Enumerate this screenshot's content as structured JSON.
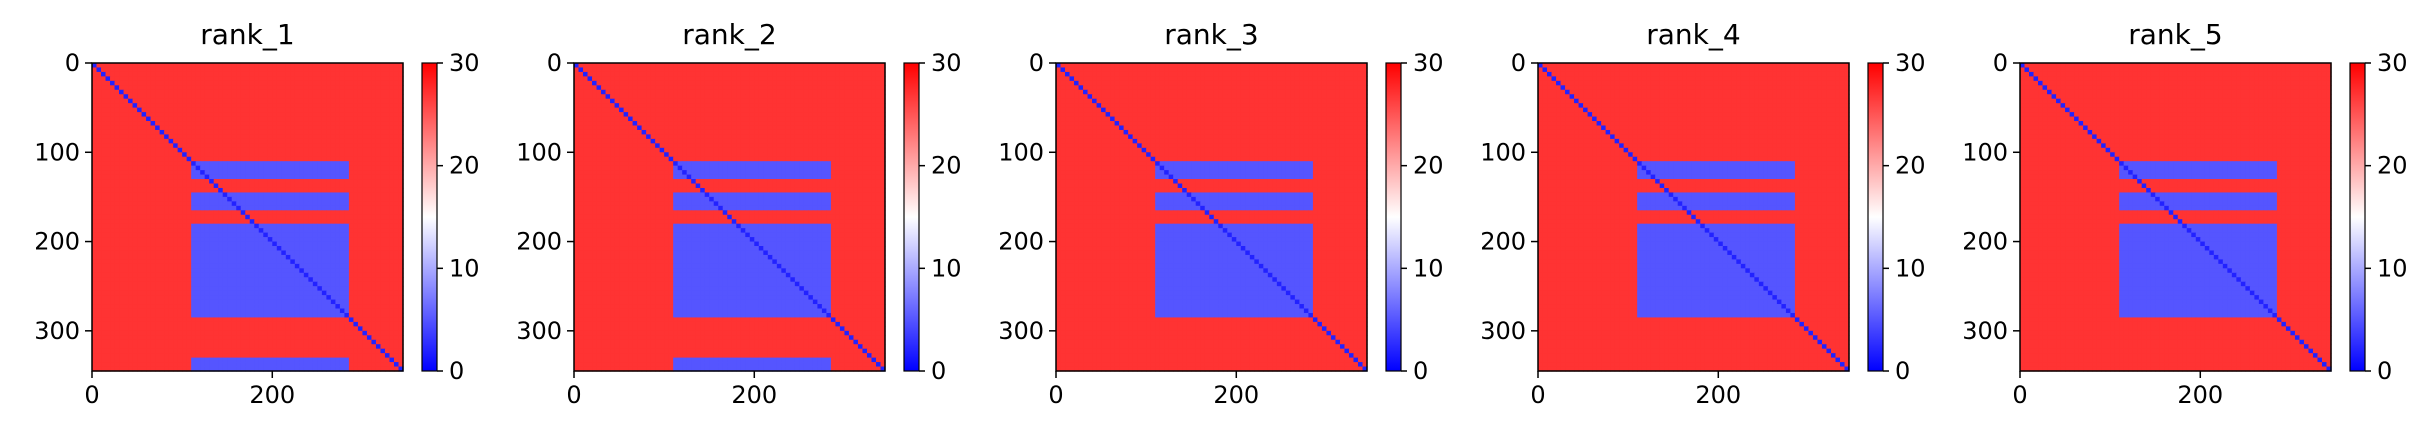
{
  "figure": {
    "background": "#ffffff",
    "colormap": {
      "name": "bwr",
      "low": "#0000ff",
      "mid": "#ffffff",
      "high": "#ff0000"
    }
  },
  "chart_data": [
    {
      "type": "heatmap",
      "title": "rank_1",
      "xlim": [
        0,
        345
      ],
      "ylim": [
        345,
        0
      ],
      "xticks": [
        0,
        200
      ],
      "yticks": [
        0,
        100,
        200,
        300
      ],
      "colorbar": {
        "range": [
          0,
          30
        ],
        "ticks": [
          0,
          10,
          20,
          30
        ]
      },
      "description_regions": {
        "baseline_value": 27,
        "diagonal_value": 2,
        "block_value": 5,
        "blocks": {
          "x_spans": [
            [
              110,
              285
            ]
          ],
          "y_spans": [
            [
              110,
              130
            ],
            [
              145,
              165
            ],
            [
              180,
              285
            ]
          ]
        },
        "edge_fragment": [
          [
            330,
            345
          ],
          [
            110,
            285
          ]
        ]
      }
    },
    {
      "type": "heatmap",
      "title": "rank_2",
      "xlim": [
        0,
        345
      ],
      "ylim": [
        345,
        0
      ],
      "xticks": [
        0,
        200
      ],
      "yticks": [
        0,
        100,
        200,
        300
      ],
      "colorbar": {
        "range": [
          0,
          30
        ],
        "ticks": [
          0,
          10,
          20,
          30
        ]
      },
      "description_regions": {
        "baseline_value": 27,
        "diagonal_value": 2,
        "block_value": 5,
        "blocks": {
          "x_spans": [
            [
              110,
              285
            ]
          ],
          "y_spans": [
            [
              110,
              130
            ],
            [
              145,
              165
            ],
            [
              180,
              285
            ]
          ]
        },
        "edge_fragment": [
          [
            330,
            345
          ],
          [
            110,
            285
          ]
        ]
      }
    },
    {
      "type": "heatmap",
      "title": "rank_3",
      "xlim": [
        0,
        345
      ],
      "ylim": [
        345,
        0
      ],
      "xticks": [
        0,
        200
      ],
      "yticks": [
        0,
        100,
        200,
        300
      ],
      "colorbar": {
        "range": [
          0,
          30
        ],
        "ticks": [
          0,
          10,
          20,
          30
        ]
      },
      "description_regions": {
        "baseline_value": 27,
        "diagonal_value": 2,
        "block_value": 5,
        "blocks": {
          "x_spans": [
            [
              110,
              285
            ]
          ],
          "y_spans": [
            [
              110,
              130
            ],
            [
              145,
              165
            ],
            [
              180,
              285
            ]
          ]
        },
        "edge_fragment": []
      }
    },
    {
      "type": "heatmap",
      "title": "rank_4",
      "xlim": [
        0,
        345
      ],
      "ylim": [
        345,
        0
      ],
      "xticks": [
        0,
        200
      ],
      "yticks": [
        0,
        100,
        200,
        300
      ],
      "colorbar": {
        "range": [
          0,
          30
        ],
        "ticks": [
          0,
          10,
          20,
          30
        ]
      },
      "description_regions": {
        "baseline_value": 27,
        "diagonal_value": 2,
        "block_value": 5,
        "blocks": {
          "x_spans": [
            [
              110,
              285
            ]
          ],
          "y_spans": [
            [
              110,
              130
            ],
            [
              145,
              165
            ],
            [
              180,
              285
            ]
          ]
        },
        "edge_fragment": []
      }
    },
    {
      "type": "heatmap",
      "title": "rank_5",
      "xlim": [
        0,
        345
      ],
      "ylim": [
        345,
        0
      ],
      "xticks": [
        0,
        200
      ],
      "yticks": [
        0,
        100,
        200,
        300
      ],
      "colorbar": {
        "range": [
          0,
          30
        ],
        "ticks": [
          0,
          10,
          20,
          30
        ]
      },
      "description_regions": {
        "baseline_value": 27,
        "diagonal_value": 2,
        "block_value": 5,
        "blocks": {
          "x_spans": [
            [
              110,
              285
            ]
          ],
          "y_spans": [
            [
              110,
              130
            ],
            [
              145,
              165
            ],
            [
              180,
              285
            ]
          ]
        },
        "edge_fragment": []
      }
    }
  ]
}
